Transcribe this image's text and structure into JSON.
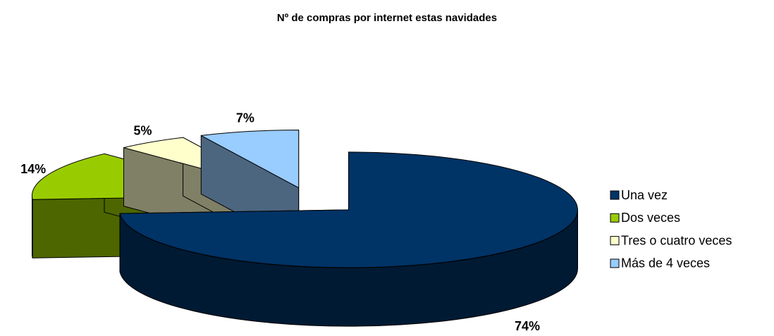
{
  "chart_data": {
    "type": "pie",
    "title": "Nº de compras por internet estas navidades",
    "categories": [
      "Una vez",
      "Dos veces",
      "Tres o cuatro veces",
      "Más de 4 veces"
    ],
    "values": [
      74,
      14,
      5,
      7
    ],
    "value_labels": [
      "74%",
      "14%",
      "5%",
      "7%"
    ],
    "colors": [
      "#003366",
      "#99cc00",
      "#ffffcc",
      "#99ccff"
    ],
    "legend": "right"
  }
}
